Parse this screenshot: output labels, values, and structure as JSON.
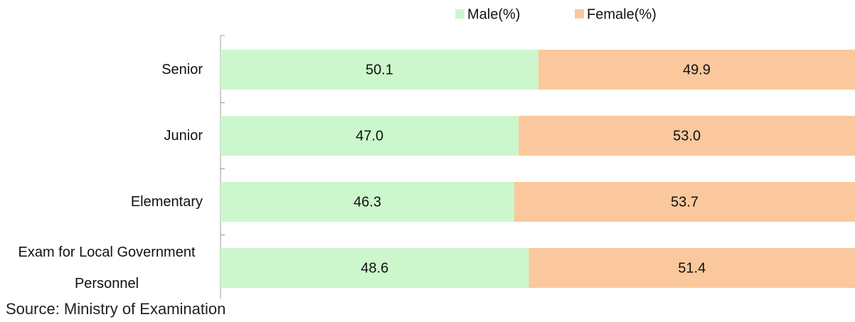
{
  "chart_data": {
    "type": "stacked_bar_horizontal",
    "categories": [
      "Senior",
      "Junior",
      "Elementary",
      "Exam for Local Government Personnel"
    ],
    "series": [
      {
        "name": "Male(%)",
        "color": "#ccf7cc",
        "values": [
          50.1,
          47.0,
          46.3,
          48.6
        ],
        "value_labels": [
          "50.1",
          "47.0",
          "46.3",
          "48.6"
        ]
      },
      {
        "name": "Female(%)",
        "color": "#fac89c",
        "values": [
          49.9,
          53.0,
          53.7,
          51.4
        ],
        "value_labels": [
          "49.9",
          "53.0",
          "53.7",
          "51.4"
        ]
      }
    ],
    "xlim": [
      0,
      100
    ],
    "source": "Source: Ministry of Examination"
  }
}
